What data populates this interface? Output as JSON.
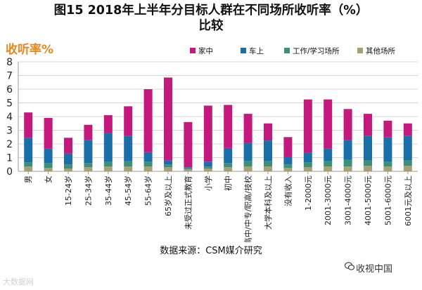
{
  "title_line1": "图15 2018年上半年分目标人群在不同场所收听率（%）",
  "title_line2": "比较",
  "ylabel_cn": "收听率%",
  "source": "数据来源：CSM媒介研究",
  "watermark_right": "收视中国",
  "watermark_left": "大数据网",
  "colors": {
    "home": "#C5187C",
    "car": "#1A6FA8",
    "work": "#3F8E79",
    "other": "#A89F73"
  },
  "chart_data": {
    "type": "bar",
    "stacked": true,
    "categories": [
      "男",
      "女",
      "15-24岁",
      "25-34岁",
      "35-44岁",
      "45-54岁",
      "55-64岁",
      "65岁及以上",
      "未受过正式教育",
      "小学",
      "初中",
      "高中/中专/职高/技校",
      "大学本科及以上",
      "没有收入",
      "1-2000元",
      "2001-3000元",
      "3001-4000元",
      "4001-5000元",
      "5001-6000元",
      "6001元及以上"
    ],
    "series": [
      {
        "name": "其他场所",
        "values": [
          0.35,
          0.25,
          0.2,
          0.3,
          0.35,
          0.35,
          0.35,
          0.3,
          0.15,
          0.2,
          0.3,
          0.35,
          0.35,
          0.25,
          0.3,
          0.35,
          0.35,
          0.4,
          0.35,
          0.4
        ]
      },
      {
        "name": "工作/学习场所",
        "values": [
          0.3,
          0.35,
          0.3,
          0.3,
          0.35,
          0.4,
          0.35,
          0.2,
          0.1,
          0.15,
          0.3,
          0.4,
          0.4,
          0.25,
          0.35,
          0.4,
          0.5,
          0.4,
          0.35,
          0.4
        ]
      },
      {
        "name": "车上",
        "values": [
          1.8,
          1.05,
          0.8,
          1.7,
          2.1,
          1.85,
          0.7,
          0.3,
          0.05,
          0.35,
          1.1,
          1.35,
          1.5,
          0.55,
          0.7,
          0.9,
          1.45,
          1.8,
          1.8,
          1.8
        ]
      },
      {
        "name": "家中",
        "values": [
          1.85,
          2.25,
          1.15,
          1.1,
          1.3,
          2.15,
          4.6,
          6.05,
          3.3,
          4.1,
          3.15,
          2.1,
          1.25,
          1.45,
          3.9,
          3.6,
          2.25,
          1.6,
          1.2,
          0.9
        ]
      }
    ],
    "legend": [
      {
        "name": "家中",
        "key": "home"
      },
      {
        "name": "车上",
        "key": "car"
      },
      {
        "name": "工作/学习场所",
        "key": "work"
      },
      {
        "name": "其他场所",
        "key": "other"
      }
    ],
    "ylim": [
      0,
      8
    ],
    "yticks": [
      0,
      1,
      2,
      3,
      4,
      5,
      6,
      7,
      8
    ],
    "grid": true,
    "legend_position": "top-right"
  }
}
